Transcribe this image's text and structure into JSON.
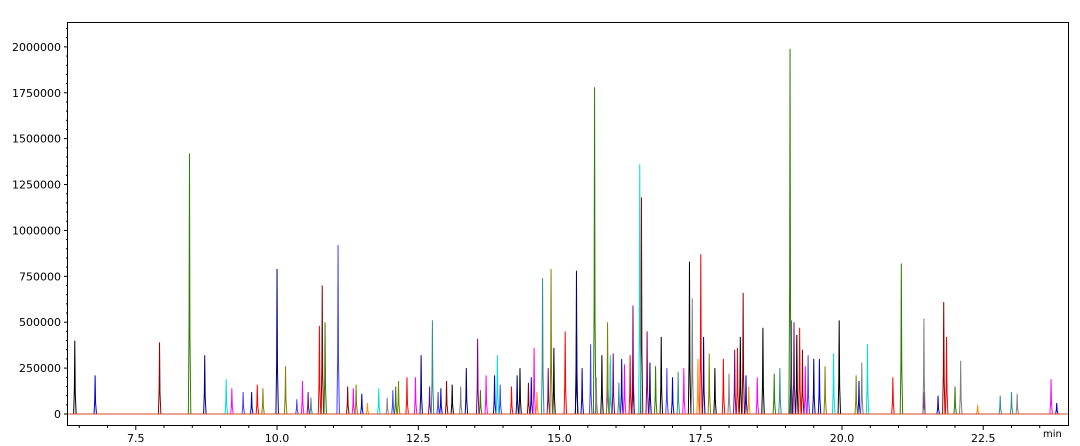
{
  "chart_data": {
    "type": "line",
    "title": "",
    "xlabel": "",
    "ylabel": "",
    "x_unit": "min",
    "xlim": [
      6.3,
      24.0
    ],
    "ylim": [
      -60000,
      2130000
    ],
    "x_ticks": [
      7.5,
      10.0,
      12.5,
      15.0,
      17.5,
      20.0,
      22.5
    ],
    "x_tick_labels": [
      "7.5",
      "10.0",
      "12.5",
      "15.0",
      "17.5",
      "20.0",
      "22.5"
    ],
    "y_ticks": [
      0,
      250000,
      500000,
      750000,
      1000000,
      1250000,
      1500000,
      1750000,
      2000000
    ],
    "y_tick_labels": [
      "0",
      "250000",
      "500000",
      "750000",
      "1000000",
      "1250000",
      "1500000",
      "1750000",
      "2000000"
    ],
    "grid": false,
    "legend": "none",
    "series": [
      {
        "color": "#000000",
        "peaks": [
          [
            6.42,
            400000
          ],
          [
            13.1,
            160000
          ],
          [
            14.3,
            250000
          ],
          [
            14.9,
            360000
          ],
          [
            15.3,
            450000
          ],
          [
            15.75,
            320000
          ],
          [
            16.3,
            300000
          ],
          [
            16.8,
            420000
          ],
          [
            17.3,
            830000
          ],
          [
            17.75,
            250000
          ],
          [
            18.2,
            420000
          ],
          [
            18.6,
            470000
          ],
          [
            19.2,
            430000
          ],
          [
            19.95,
            510000
          ]
        ]
      },
      {
        "color": "#0000cc",
        "peaks": [
          [
            6.78,
            210000
          ],
          [
            9.55,
            120000
          ],
          [
            11.5,
            110000
          ],
          [
            12.9,
            140000
          ],
          [
            13.85,
            210000
          ],
          [
            14.5,
            200000
          ],
          [
            15.4,
            250000
          ],
          [
            16.1,
            300000
          ],
          [
            17.0,
            200000
          ],
          [
            18.3,
            210000
          ],
          [
            19.6,
            300000
          ],
          [
            20.3,
            180000
          ],
          [
            21.7,
            100000
          ],
          [
            23.8,
            60000
          ]
        ]
      },
      {
        "color": "#000080",
        "peaks": [
          [
            8.72,
            320000
          ],
          [
            10.0,
            790000
          ],
          [
            12.55,
            320000
          ],
          [
            13.35,
            250000
          ],
          [
            14.25,
            210000
          ],
          [
            15.3,
            780000
          ],
          [
            16.6,
            280000
          ],
          [
            17.55,
            420000
          ],
          [
            19.1,
            510000
          ],
          [
            19.5,
            300000
          ]
        ]
      },
      {
        "color": "#8b0000",
        "peaks": [
          [
            7.92,
            390000
          ],
          [
            10.8,
            700000
          ],
          [
            11.25,
            150000
          ],
          [
            13.0,
            180000
          ],
          [
            14.45,
            170000
          ],
          [
            15.9,
            280000
          ],
          [
            16.45,
            1180000
          ],
          [
            18.25,
            660000
          ],
          [
            19.3,
            350000
          ],
          [
            21.8,
            610000
          ]
        ]
      },
      {
        "color": "#ff0000",
        "peaks": [
          [
            9.65,
            160000
          ],
          [
            10.75,
            480000
          ],
          [
            12.3,
            200000
          ],
          [
            14.15,
            150000
          ],
          [
            15.1,
            450000
          ],
          [
            16.25,
            320000
          ],
          [
            17.5,
            870000
          ],
          [
            17.9,
            300000
          ],
          [
            18.15,
            360000
          ],
          [
            19.25,
            470000
          ],
          [
            20.9,
            200000
          ],
          [
            21.85,
            420000
          ]
        ]
      },
      {
        "color": "#2e7d00",
        "peaks": [
          [
            8.45,
            1420000
          ],
          [
            10.85,
            500000
          ],
          [
            12.1,
            150000
          ],
          [
            13.6,
            130000
          ],
          [
            15.62,
            1780000
          ],
          [
            16.7,
            260000
          ],
          [
            18.8,
            220000
          ],
          [
            19.08,
            1990000
          ],
          [
            21.05,
            820000
          ],
          [
            22.0,
            150000
          ]
        ]
      },
      {
        "color": "#4040ff",
        "peaks": [
          [
            9.4,
            120000
          ],
          [
            10.35,
            80000
          ],
          [
            11.08,
            920000
          ],
          [
            12.05,
            130000
          ],
          [
            12.85,
            120000
          ],
          [
            13.95,
            160000
          ],
          [
            15.55,
            380000
          ],
          [
            16.9,
            250000
          ],
          [
            19.4,
            320000
          ]
        ]
      },
      {
        "color": "#ff00ff",
        "peaks": [
          [
            9.2,
            140000
          ],
          [
            10.45,
            180000
          ],
          [
            11.35,
            140000
          ],
          [
            12.45,
            200000
          ],
          [
            13.7,
            210000
          ],
          [
            14.55,
            360000
          ],
          [
            15.85,
            250000
          ],
          [
            16.15,
            270000
          ],
          [
            17.2,
            250000
          ],
          [
            18.5,
            200000
          ],
          [
            19.35,
            260000
          ],
          [
            23.7,
            190000
          ]
        ]
      },
      {
        "color": "#00dddd",
        "peaks": [
          [
            9.1,
            190000
          ],
          [
            11.8,
            140000
          ],
          [
            13.9,
            320000
          ],
          [
            15.9,
            320000
          ],
          [
            16.42,
            1360000
          ],
          [
            19.85,
            330000
          ],
          [
            20.45,
            380000
          ]
        ]
      },
      {
        "color": "#800080",
        "peaks": [
          [
            10.55,
            120000
          ],
          [
            12.7,
            150000
          ],
          [
            13.55,
            410000
          ],
          [
            14.8,
            250000
          ],
          [
            15.95,
            330000
          ],
          [
            16.3,
            590000
          ],
          [
            16.55,
            450000
          ],
          [
            18.1,
            350000
          ],
          [
            19.15,
            500000
          ],
          [
            21.45,
            120000
          ]
        ]
      },
      {
        "color": "#2f8f8f",
        "peaks": [
          [
            10.6,
            90000
          ],
          [
            12.75,
            510000
          ],
          [
            14.7,
            740000
          ],
          [
            16.05,
            170000
          ],
          [
            17.1,
            230000
          ],
          [
            18.9,
            250000
          ],
          [
            22.8,
            100000
          ],
          [
            23.0,
            120000
          ]
        ]
      },
      {
        "color": "#808000",
        "peaks": [
          [
            9.75,
            140000
          ],
          [
            10.15,
            260000
          ],
          [
            11.4,
            160000
          ],
          [
            12.15,
            180000
          ],
          [
            14.85,
            790000
          ],
          [
            15.85,
            500000
          ],
          [
            17.65,
            330000
          ],
          [
            19.7,
            260000
          ],
          [
            20.25,
            210000
          ]
        ]
      },
      {
        "color": "#808080",
        "peaks": [
          [
            11.95,
            90000
          ],
          [
            13.25,
            150000
          ],
          [
            15.65,
            200000
          ],
          [
            17.35,
            630000
          ],
          [
            18.0,
            220000
          ],
          [
            20.35,
            280000
          ],
          [
            21.45,
            520000
          ],
          [
            22.1,
            290000
          ],
          [
            23.1,
            110000
          ]
        ]
      },
      {
        "color": "#ff8c00",
        "peaks": [
          [
            11.6,
            60000
          ],
          [
            14.6,
            120000
          ],
          [
            17.45,
            300000
          ],
          [
            18.35,
            150000
          ],
          [
            22.4,
            50000
          ]
        ]
      }
    ]
  }
}
